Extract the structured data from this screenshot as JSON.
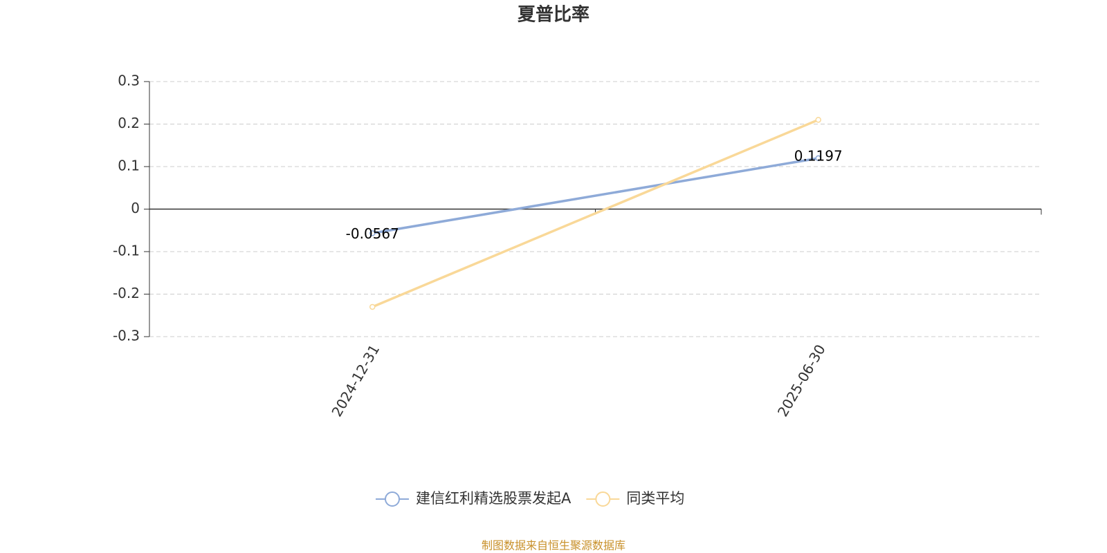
{
  "chart_data": {
    "type": "line",
    "title": "夏普比率",
    "categories": [
      "2024-12-31",
      "2025-06-30"
    ],
    "series": [
      {
        "name": "建信红利精选股票发起A",
        "color": "#8eaad8",
        "values": [
          -0.0567,
          0.1197
        ],
        "data_labels": true
      },
      {
        "name": "同类平均",
        "color": "#f9d898",
        "values": [
          -0.23,
          0.21
        ],
        "data_labels": false
      }
    ],
    "ylim": [
      -0.3,
      0.3
    ],
    "yticks": [
      -0.3,
      -0.2,
      -0.1,
      0,
      0.1,
      0.2,
      0.3
    ],
    "grid": true,
    "legend": "bottom",
    "source": "制图数据来自恒生聚源数据库"
  }
}
